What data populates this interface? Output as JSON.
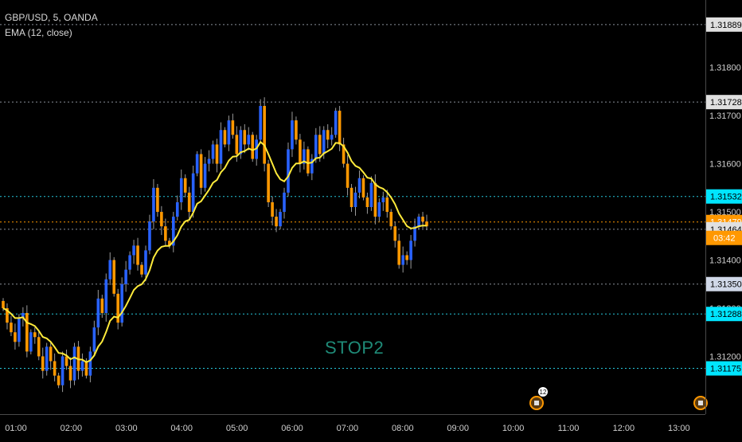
{
  "legend": {
    "symbol": "GBP/USD, 5, OANDA",
    "indicator": "EMA (12, close)"
  },
  "annotation": "STOP2",
  "price_ticks": [
    "1.31800",
    "1.31700",
    "1.31600",
    "1.31500",
    "1.31400",
    "1.31300",
    "1.31200"
  ],
  "time_ticks": [
    "01:00",
    "02:00",
    "03:00",
    "04:00",
    "05:00",
    "06:00",
    "07:00",
    "08:00",
    "09:00",
    "10:00",
    "11:00",
    "12:00",
    "13:00"
  ],
  "countdown": "03:42",
  "event_badge": "12",
  "colors": {
    "background": "#000000",
    "up_candle": "#2962ff",
    "down_candle": "#ff9800",
    "ema": "#ffeb3b",
    "level_line": "#26c6da",
    "white_level": "#d0d8e8",
    "current_price": "#ff9800",
    "annotation": "#1f8b78"
  },
  "chart_data": {
    "type": "candlestick",
    "symbol": "GBP/USD",
    "interval": "5",
    "source": "OANDA",
    "ylim": [
      1.3108,
      1.3194
    ],
    "indicator": "EMA (12, close)",
    "horizontal_levels": [
      {
        "price": 1.31889,
        "label": "1.31889",
        "style": "white"
      },
      {
        "price": 1.31728,
        "label": "1.31728",
        "style": "white"
      },
      {
        "price": 1.31532,
        "label": "1.31532",
        "style": "cyan"
      },
      {
        "price": 1.31479,
        "label": "1.31479",
        "style": "current"
      },
      {
        "price": 1.31464,
        "label": "1.31464",
        "style": "white"
      },
      {
        "price": 1.3135,
        "label": "1.31350",
        "style": "light"
      },
      {
        "price": 1.31288,
        "label": "1.31288",
        "style": "cyan"
      },
      {
        "price": 1.31175,
        "label": "1.31175",
        "style": "cyan"
      }
    ],
    "close_series": [
      1.313,
      1.3127,
      1.3125,
      1.3123,
      1.3128,
      1.3129,
      1.3121,
      1.3125,
      1.3124,
      1.312,
      1.3117,
      1.3122,
      1.3119,
      1.3116,
      1.3114,
      1.312,
      1.3118,
      1.3115,
      1.3122,
      1.3117,
      1.3119,
      1.3116,
      1.3121,
      1.3126,
      1.3132,
      1.3129,
      1.3136,
      1.314,
      1.3133,
      1.3127,
      1.3135,
      1.3138,
      1.3141,
      1.3143,
      1.3139,
      1.3137,
      1.3142,
      1.3148,
      1.3155,
      1.315,
      1.3147,
      1.3144,
      1.3143,
      1.3149,
      1.3152,
      1.3157,
      1.3154,
      1.315,
      1.3158,
      1.3162,
      1.3155,
      1.316,
      1.3161,
      1.3164,
      1.316,
      1.3167,
      1.3164,
      1.3169,
      1.3166,
      1.3162,
      1.3167,
      1.3164,
      1.3166,
      1.3161,
      1.3165,
      1.3172,
      1.316,
      1.3152,
      1.3149,
      1.3147,
      1.315,
      1.3154,
      1.3163,
      1.3169,
      1.3165,
      1.316,
      1.3163,
      1.3158,
      1.3161,
      1.3166,
      1.3162,
      1.3167,
      1.3165,
      1.3166,
      1.3171,
      1.3164,
      1.316,
      1.3155,
      1.3151,
      1.3154,
      1.3157,
      1.3153,
      1.3151,
      1.3156,
      1.3149,
      1.3152,
      1.3153,
      1.315,
      1.3147,
      1.3144,
      1.3139,
      1.3141,
      1.314,
      1.3144,
      1.3147,
      1.3149,
      1.3148,
      1.3147
    ]
  }
}
